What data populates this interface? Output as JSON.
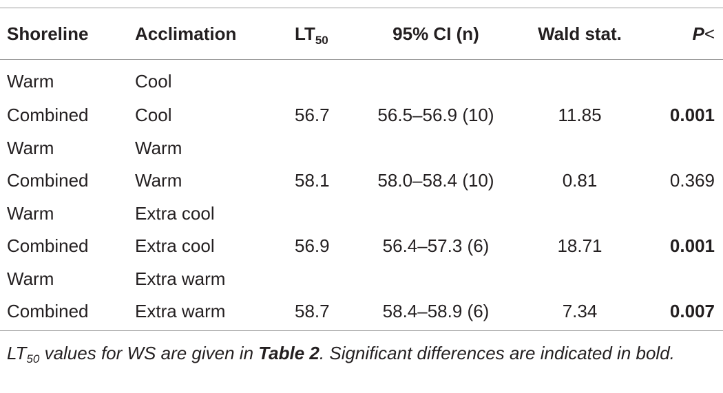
{
  "table": {
    "headers": {
      "shoreline": "Shoreline",
      "acclimation": "Acclimation",
      "lt_main": "LT",
      "lt_sub": "50",
      "ci": "95% CI (n)",
      "wald": "Wald stat.",
      "p_main": "P",
      "p_sym": "<"
    },
    "rows": [
      {
        "shoreline": "Warm",
        "acclimation": "Cool",
        "lt50": "",
        "ci": "",
        "wald": "",
        "p": "",
        "p_bold": false
      },
      {
        "shoreline": "Combined",
        "acclimation": "Cool",
        "lt50": "56.7",
        "ci": "56.5–56.9 (10)",
        "wald": "11.85",
        "p": "0.001",
        "p_bold": true
      },
      {
        "shoreline": "Warm",
        "acclimation": "Warm",
        "lt50": "",
        "ci": "",
        "wald": "",
        "p": "",
        "p_bold": false
      },
      {
        "shoreline": "Combined",
        "acclimation": "Warm",
        "lt50": "58.1",
        "ci": "58.0–58.4 (10)",
        "wald": "0.81",
        "p": "0.369",
        "p_bold": false
      },
      {
        "shoreline": "Warm",
        "acclimation": "Extra cool",
        "lt50": "",
        "ci": "",
        "wald": "",
        "p": "",
        "p_bold": false
      },
      {
        "shoreline": "Combined",
        "acclimation": "Extra cool",
        "lt50": "56.9",
        "ci": "56.4–57.3 (6)",
        "wald": "18.71",
        "p": "0.001",
        "p_bold": true
      },
      {
        "shoreline": "Warm",
        "acclimation": "Extra warm",
        "lt50": "",
        "ci": "",
        "wald": "",
        "p": "",
        "p_bold": false
      },
      {
        "shoreline": "Combined",
        "acclimation": "Extra warm",
        "lt50": "58.7",
        "ci": "58.4–58.9 (6)",
        "wald": "7.34",
        "p": "0.007",
        "p_bold": true
      }
    ]
  },
  "footnote": {
    "lt_main": "LT",
    "lt_sub": "50",
    "part1": " values for WS are given in ",
    "table_ref": "Table 2",
    "part2": ". Significant differences are indicated in bold."
  },
  "colors": {
    "text": "#231f20",
    "rule": "#9a9a9a"
  }
}
